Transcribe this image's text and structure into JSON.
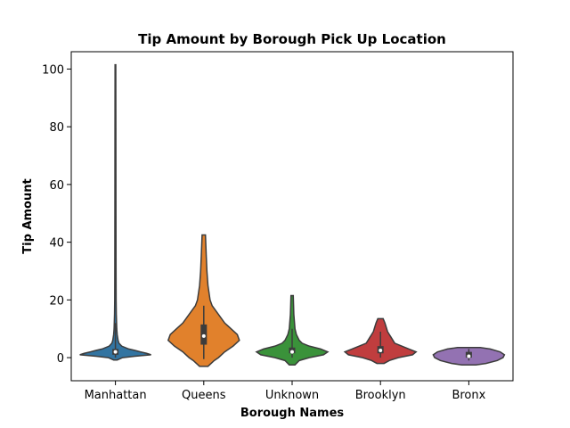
{
  "chart_data": {
    "type": "violin",
    "title": "Tip Amount by Borough Pick Up Location",
    "xlabel": "Borough Names",
    "ylabel": "Tip Amount",
    "categories": [
      "Manhattan",
      "Queens",
      "Unknown",
      "Brooklyn",
      "Bronx"
    ],
    "ylim": [
      -8,
      106
    ],
    "yticks": [
      0,
      20,
      40,
      60,
      80,
      100
    ],
    "ytick_labels": [
      "0",
      "20",
      "40",
      "60",
      "80",
      "100"
    ],
    "grid": false,
    "legend": "none",
    "series": [
      {
        "category": "Manhattan",
        "color": "#3274a1",
        "min": -0.8,
        "max": 101.5,
        "q1": 1.0,
        "median": 2.0,
        "q3": 3.0,
        "whisker_low": 0,
        "whisker_high": 12,
        "profile": [
          [
            -0.8,
            0.02
          ],
          [
            0,
            0.08
          ],
          [
            0.5,
            0.22
          ],
          [
            1,
            0.4
          ],
          [
            1.5,
            0.35
          ],
          [
            2,
            0.28
          ],
          [
            2.5,
            0.22
          ],
          [
            3,
            0.15
          ],
          [
            4,
            0.07
          ],
          [
            5,
            0.04
          ],
          [
            6,
            0.03
          ],
          [
            8,
            0.02
          ],
          [
            10,
            0.015
          ],
          [
            15,
            0.01
          ],
          [
            20,
            0.008
          ],
          [
            30,
            0.007
          ],
          [
            50,
            0.006
          ],
          [
            80,
            0.005
          ],
          [
            101.5,
            0.004
          ]
        ]
      },
      {
        "category": "Queens",
        "color": "#e1812c",
        "min": -3,
        "max": 42.5,
        "q1": 4.5,
        "median": 7.5,
        "q3": 11.5,
        "whisker_low": -0.5,
        "whisker_high": 18,
        "profile": [
          [
            -3,
            0.02
          ],
          [
            -1,
            0.05
          ],
          [
            0,
            0.07
          ],
          [
            2,
            0.1
          ],
          [
            4,
            0.14
          ],
          [
            6,
            0.17
          ],
          [
            8,
            0.16
          ],
          [
            10,
            0.13
          ],
          [
            12,
            0.1
          ],
          [
            14,
            0.08
          ],
          [
            16,
            0.06
          ],
          [
            18,
            0.04
          ],
          [
            20,
            0.03
          ],
          [
            25,
            0.02
          ],
          [
            30,
            0.015
          ],
          [
            35,
            0.012
          ],
          [
            42.5,
            0.008
          ]
        ]
      },
      {
        "category": "Unknown",
        "color": "#3a923a",
        "min": -2.5,
        "max": 21.5,
        "q1": 1.5,
        "median": 2.0,
        "q3": 3.5,
        "whisker_low": 0,
        "whisker_high": 10,
        "profile": [
          [
            -2.5,
            0.02
          ],
          [
            -1,
            0.05
          ],
          [
            0,
            0.12
          ],
          [
            1,
            0.22
          ],
          [
            2,
            0.25
          ],
          [
            3,
            0.2
          ],
          [
            4,
            0.12
          ],
          [
            5,
            0.07
          ],
          [
            6,
            0.05
          ],
          [
            8,
            0.03
          ],
          [
            10,
            0.02
          ],
          [
            15,
            0.012
          ],
          [
            21.5,
            0.008
          ]
        ]
      },
      {
        "category": "Brooklyn",
        "color": "#c03d3e",
        "min": -2,
        "max": 13.5,
        "q1": 1.5,
        "median": 2.5,
        "q3": 4.0,
        "whisker_low": 0,
        "whisker_high": 9,
        "profile": [
          [
            -2,
            0.02
          ],
          [
            -1,
            0.05
          ],
          [
            0,
            0.1
          ],
          [
            1,
            0.18
          ],
          [
            2,
            0.2
          ],
          [
            3,
            0.16
          ],
          [
            4,
            0.12
          ],
          [
            5,
            0.08
          ],
          [
            6,
            0.07
          ],
          [
            7,
            0.06
          ],
          [
            8,
            0.05
          ],
          [
            9,
            0.04
          ],
          [
            10,
            0.035
          ],
          [
            11,
            0.03
          ],
          [
            12,
            0.025
          ],
          [
            13.5,
            0.015
          ]
        ]
      },
      {
        "category": "Bronx",
        "color": "#9372b2",
        "min": -2.5,
        "max": 3.5,
        "q1": 0.0,
        "median": 0.5,
        "q3": 2.0,
        "whisker_low": -1,
        "whisker_high": 3,
        "profile": [
          [
            -2.5,
            0.05
          ],
          [
            -2,
            0.12
          ],
          [
            -1,
            0.2
          ],
          [
            0,
            0.24
          ],
          [
            1,
            0.25
          ],
          [
            2,
            0.22
          ],
          [
            3,
            0.15
          ],
          [
            3.5,
            0.08
          ]
        ]
      }
    ]
  }
}
